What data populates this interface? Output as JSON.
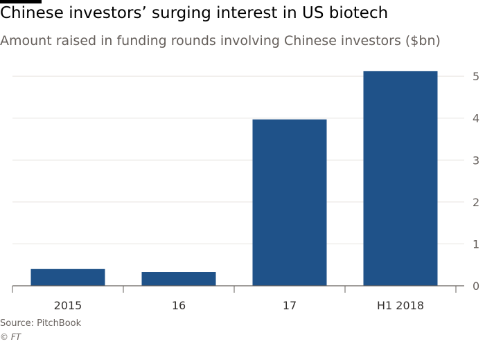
{
  "header": {
    "title": "Chinese investors’ surging interest in US biotech",
    "subtitle": "Amount raised in funding rounds involving Chinese investors ($bn)"
  },
  "footer": {
    "source": "Source: PitchBook",
    "copyright": "© FT"
  },
  "colors": {
    "bar": "#1f5289",
    "grid": "#e6e3df",
    "axis": "#66605c",
    "tick_text": "#66605c"
  },
  "chart_data": {
    "type": "bar",
    "categories": [
      "2015",
      "16",
      "17",
      "H1 2018"
    ],
    "values": [
      0.4,
      0.33,
      3.97,
      5.12
    ],
    "yticks": [
      0,
      1,
      2,
      3,
      4,
      5
    ],
    "ylim": [
      0,
      5.3
    ],
    "grid": true,
    "y_axis_side": "right",
    "xlabel": "",
    "ylabel": ""
  }
}
